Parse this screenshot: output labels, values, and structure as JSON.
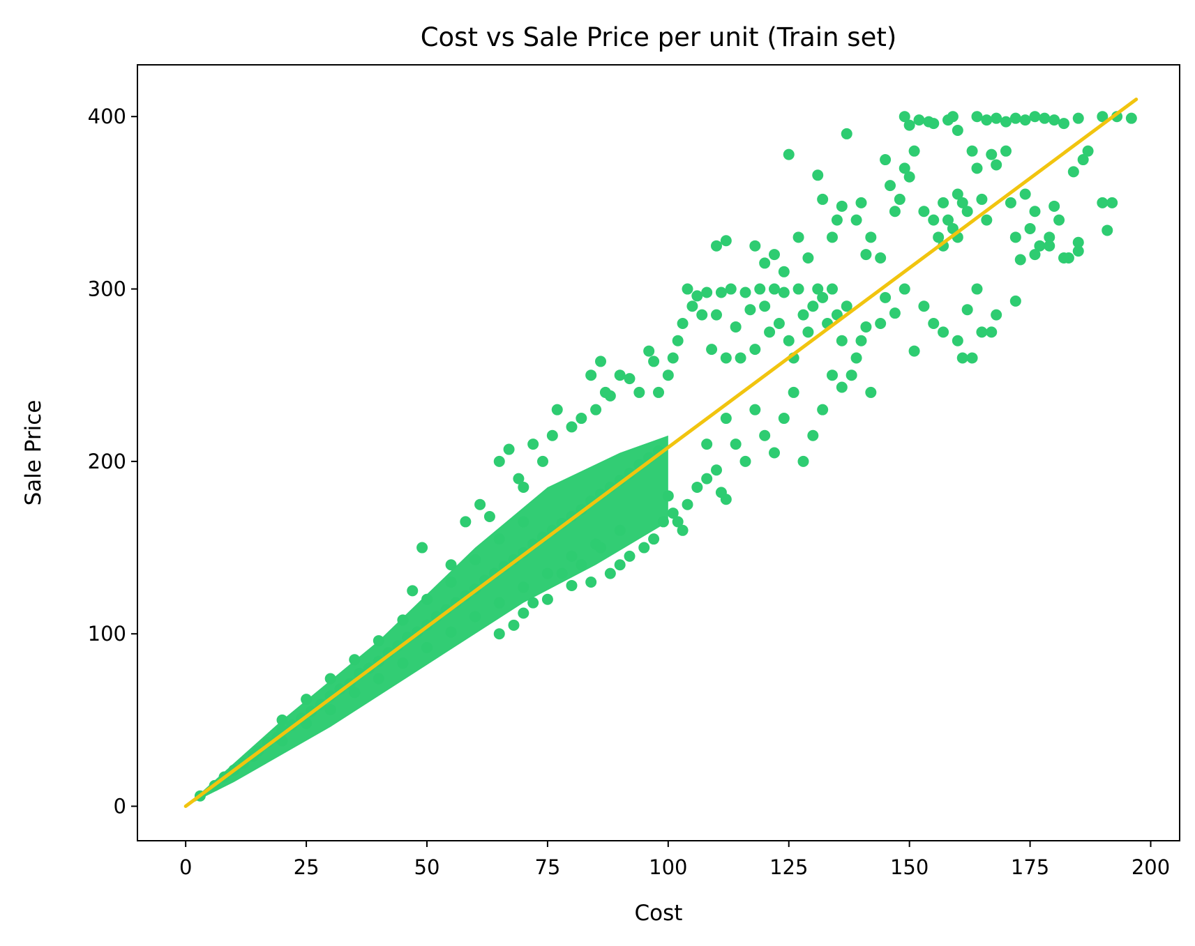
{
  "chart_data": {
    "type": "scatter",
    "title": "Cost vs Sale Price per unit (Train set)",
    "xlabel": "Cost",
    "ylabel": "Sale Price",
    "xlim": [
      -10,
      206
    ],
    "ylim": [
      -20,
      430
    ],
    "xticks": [
      0,
      25,
      50,
      75,
      100,
      125,
      150,
      175,
      200
    ],
    "yticks": [
      0,
      100,
      200,
      300,
      400
    ],
    "grid": false,
    "legend": "none",
    "colors": {
      "points": "#2ecc71",
      "fit_line": "#f1c40f"
    },
    "series": [
      {
        "type": "scatter",
        "cluster": [
          [
            3,
            6
          ],
          [
            6,
            12
          ],
          [
            8,
            17
          ],
          [
            10,
            21
          ],
          [
            12,
            25
          ],
          [
            14,
            29
          ],
          [
            15,
            32
          ],
          [
            17,
            37
          ],
          [
            19,
            40
          ],
          [
            20,
            44
          ],
          [
            22,
            47
          ],
          [
            24,
            51
          ],
          [
            26,
            55
          ],
          [
            28,
            59
          ],
          [
            30,
            64
          ],
          [
            32,
            68
          ],
          [
            34,
            71
          ],
          [
            36,
            77
          ],
          [
            38,
            80
          ],
          [
            40,
            84
          ],
          [
            42,
            89
          ],
          [
            44,
            93
          ],
          [
            46,
            98
          ],
          [
            48,
            101
          ],
          [
            50,
            105
          ],
          [
            52,
            110
          ],
          [
            54,
            114
          ],
          [
            56,
            118
          ],
          [
            58,
            122
          ],
          [
            60,
            126
          ],
          [
            62,
            131
          ],
          [
            64,
            135
          ],
          [
            66,
            139
          ],
          [
            68,
            143
          ],
          [
            70,
            147
          ],
          [
            72,
            152
          ],
          [
            74,
            156
          ],
          [
            76,
            160
          ],
          [
            78,
            164
          ],
          [
            80,
            168
          ],
          [
            82,
            172
          ],
          [
            84,
            177
          ],
          [
            86,
            181
          ],
          [
            88,
            185
          ],
          [
            90,
            189
          ],
          [
            92,
            193
          ],
          [
            94,
            198
          ],
          [
            96,
            202
          ],
          [
            98,
            206
          ],
          [
            20,
            50
          ],
          [
            25,
            62
          ],
          [
            30,
            74
          ],
          [
            35,
            85
          ],
          [
            40,
            96
          ],
          [
            45,
            108
          ],
          [
            50,
            120
          ],
          [
            55,
            130
          ],
          [
            60,
            143
          ],
          [
            65,
            155
          ],
          [
            70,
            165
          ],
          [
            20,
            38
          ],
          [
            25,
            48
          ],
          [
            30,
            56
          ],
          [
            35,
            66
          ],
          [
            40,
            74
          ],
          [
            45,
            83
          ],
          [
            50,
            92
          ],
          [
            55,
            101
          ],
          [
            60,
            110
          ],
          [
            65,
            118
          ],
          [
            70,
            127
          ],
          [
            75,
            135
          ],
          [
            80,
            145
          ],
          [
            85,
            152
          ],
          [
            90,
            160
          ]
        ],
        "points": [
          [
            47,
            125
          ],
          [
            49,
            150
          ],
          [
            55,
            140
          ],
          [
            58,
            165
          ],
          [
            61,
            175
          ],
          [
            63,
            168
          ],
          [
            65,
            200
          ],
          [
            67,
            207
          ],
          [
            69,
            190
          ],
          [
            70,
            185
          ],
          [
            72,
            210
          ],
          [
            74,
            200
          ],
          [
            76,
            215
          ],
          [
            77,
            230
          ],
          [
            80,
            220
          ],
          [
            82,
            225
          ],
          [
            84,
            250
          ],
          [
            85,
            230
          ],
          [
            86,
            258
          ],
          [
            87,
            240
          ],
          [
            88,
            238
          ],
          [
            90,
            250
          ],
          [
            92,
            248
          ],
          [
            94,
            240
          ],
          [
            96,
            264
          ],
          [
            97,
            258
          ],
          [
            98,
            240
          ],
          [
            100,
            250
          ],
          [
            101,
            260
          ],
          [
            102,
            270
          ],
          [
            103,
            280
          ],
          [
            104,
            300
          ],
          [
            105,
            290
          ],
          [
            106,
            296
          ],
          [
            107,
            285
          ],
          [
            108,
            298
          ],
          [
            109,
            265
          ],
          [
            110,
            285
          ],
          [
            111,
            298
          ],
          [
            112,
            260
          ],
          [
            113,
            300
          ],
          [
            114,
            278
          ],
          [
            115,
            260
          ],
          [
            116,
            298
          ],
          [
            117,
            288
          ],
          [
            118,
            265
          ],
          [
            119,
            300
          ],
          [
            120,
            290
          ],
          [
            121,
            275
          ],
          [
            122,
            300
          ],
          [
            123,
            280
          ],
          [
            124,
            298
          ],
          [
            125,
            270
          ],
          [
            126,
            260
          ],
          [
            127,
            300
          ],
          [
            128,
            285
          ],
          [
            129,
            275
          ],
          [
            130,
            290
          ],
          [
            131,
            300
          ],
          [
            132,
            295
          ],
          [
            133,
            280
          ],
          [
            134,
            300
          ],
          [
            135,
            285
          ],
          [
            136,
            270
          ],
          [
            137,
            290
          ],
          [
            138,
            250
          ],
          [
            139,
            260
          ],
          [
            140,
            270
          ],
          [
            141,
            278
          ],
          [
            142,
            240
          ],
          [
            144,
            280
          ],
          [
            145,
            295
          ],
          [
            147,
            286
          ],
          [
            149,
            300
          ],
          [
            151,
            264
          ],
          [
            153,
            290
          ],
          [
            155,
            280
          ],
          [
            157,
            275
          ],
          [
            160,
            270
          ],
          [
            161,
            260
          ],
          [
            163,
            260
          ],
          [
            164,
            300
          ],
          [
            167,
            275
          ],
          [
            172,
            293
          ],
          [
            108,
            210
          ],
          [
            110,
            195
          ],
          [
            112,
            225
          ],
          [
            114,
            210
          ],
          [
            116,
            200
          ],
          [
            118,
            230
          ],
          [
            120,
            215
          ],
          [
            122,
            205
          ],
          [
            124,
            225
          ],
          [
            126,
            240
          ],
          [
            128,
            200
          ],
          [
            130,
            215
          ],
          [
            132,
            230
          ],
          [
            134,
            250
          ],
          [
            136,
            243
          ],
          [
            100,
            180
          ],
          [
            102,
            165
          ],
          [
            104,
            175
          ],
          [
            106,
            185
          ],
          [
            108,
            190
          ],
          [
            111,
            182
          ],
          [
            112,
            178
          ],
          [
            97,
            155
          ],
          [
            99,
            165
          ],
          [
            101,
            170
          ],
          [
            103,
            160
          ],
          [
            95,
            150
          ],
          [
            92,
            145
          ],
          [
            90,
            140
          ],
          [
            88,
            135
          ],
          [
            86,
            150
          ],
          [
            84,
            130
          ],
          [
            82,
            140
          ],
          [
            80,
            128
          ],
          [
            78,
            135
          ],
          [
            75,
            120
          ],
          [
            72,
            118
          ],
          [
            70,
            112
          ],
          [
            68,
            105
          ],
          [
            65,
            100
          ],
          [
            110,
            325
          ],
          [
            112,
            328
          ],
          [
            118,
            325
          ],
          [
            120,
            315
          ],
          [
            122,
            320
          ],
          [
            124,
            310
          ],
          [
            125,
            378
          ],
          [
            127,
            330
          ],
          [
            129,
            318
          ],
          [
            131,
            366
          ],
          [
            132,
            352
          ],
          [
            134,
            330
          ],
          [
            135,
            340
          ],
          [
            136,
            348
          ],
          [
            137,
            390
          ],
          [
            139,
            340
          ],
          [
            140,
            350
          ],
          [
            141,
            320
          ],
          [
            142,
            330
          ],
          [
            144,
            318
          ],
          [
            145,
            375
          ],
          [
            146,
            360
          ],
          [
            147,
            345
          ],
          [
            148,
            352
          ],
          [
            149,
            370
          ],
          [
            150,
            365
          ],
          [
            151,
            380
          ],
          [
            153,
            345
          ],
          [
            155,
            340
          ],
          [
            156,
            330
          ],
          [
            157,
            350
          ],
          [
            158,
            340
          ],
          [
            159,
            335
          ],
          [
            160,
            355
          ],
          [
            161,
            350
          ],
          [
            162,
            345
          ],
          [
            163,
            380
          ],
          [
            164,
            370
          ],
          [
            165,
            352
          ],
          [
            166,
            340
          ],
          [
            167,
            378
          ],
          [
            168,
            372
          ],
          [
            170,
            380
          ],
          [
            171,
            350
          ],
          [
            172,
            330
          ],
          [
            174,
            355
          ],
          [
            175,
            335
          ],
          [
            176,
            345
          ],
          [
            177,
            325
          ],
          [
            179,
            330
          ],
          [
            180,
            348
          ],
          [
            181,
            340
          ],
          [
            183,
            318
          ],
          [
            184,
            368
          ],
          [
            185,
            327
          ],
          [
            186,
            375
          ],
          [
            187,
            380
          ],
          [
            190,
            350
          ],
          [
            191,
            334
          ],
          [
            192,
            350
          ],
          [
            149,
            400
          ],
          [
            150,
            395
          ],
          [
            152,
            398
          ],
          [
            154,
            397
          ],
          [
            155,
            396
          ],
          [
            158,
            398
          ],
          [
            159,
            400
          ],
          [
            160,
            392
          ],
          [
            164,
            400
          ],
          [
            166,
            398
          ],
          [
            168,
            399
          ],
          [
            170,
            397
          ],
          [
            172,
            399
          ],
          [
            174,
            398
          ],
          [
            176,
            400
          ],
          [
            178,
            399
          ],
          [
            180,
            398
          ],
          [
            182,
            396
          ],
          [
            185,
            399
          ],
          [
            190,
            400
          ],
          [
            193,
            400
          ],
          [
            196,
            399
          ],
          [
            157,
            325
          ],
          [
            160,
            330
          ],
          [
            162,
            288
          ],
          [
            165,
            275
          ],
          [
            168,
            285
          ],
          [
            173,
            317
          ],
          [
            176,
            320
          ],
          [
            179,
            325
          ],
          [
            182,
            318
          ],
          [
            185,
            322
          ]
        ]
      },
      {
        "type": "line",
        "x": [
          0,
          197
        ],
        "y": [
          0,
          410
        ]
      }
    ]
  }
}
